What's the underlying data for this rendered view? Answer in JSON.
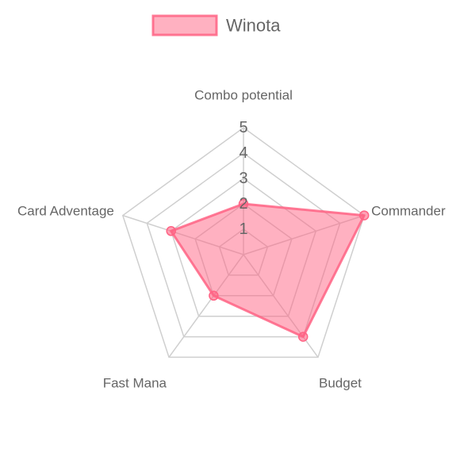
{
  "chart_data": {
    "type": "radar",
    "axes": [
      "Combo potential",
      "Commander",
      "Budget",
      "Fast Mana",
      "Card Adventage"
    ],
    "scale": {
      "min": 0,
      "max": 5,
      "ticks": [
        "1",
        "2",
        "3",
        "4",
        "5"
      ]
    },
    "series": [
      {
        "name": "Winota",
        "values": [
          2,
          5,
          4,
          2,
          3
        ],
        "fill": "#ff6384",
        "fill_opacity": 0.5,
        "stroke": "#ff6384"
      }
    ],
    "legend": {
      "placement": "top"
    },
    "grid": true
  }
}
